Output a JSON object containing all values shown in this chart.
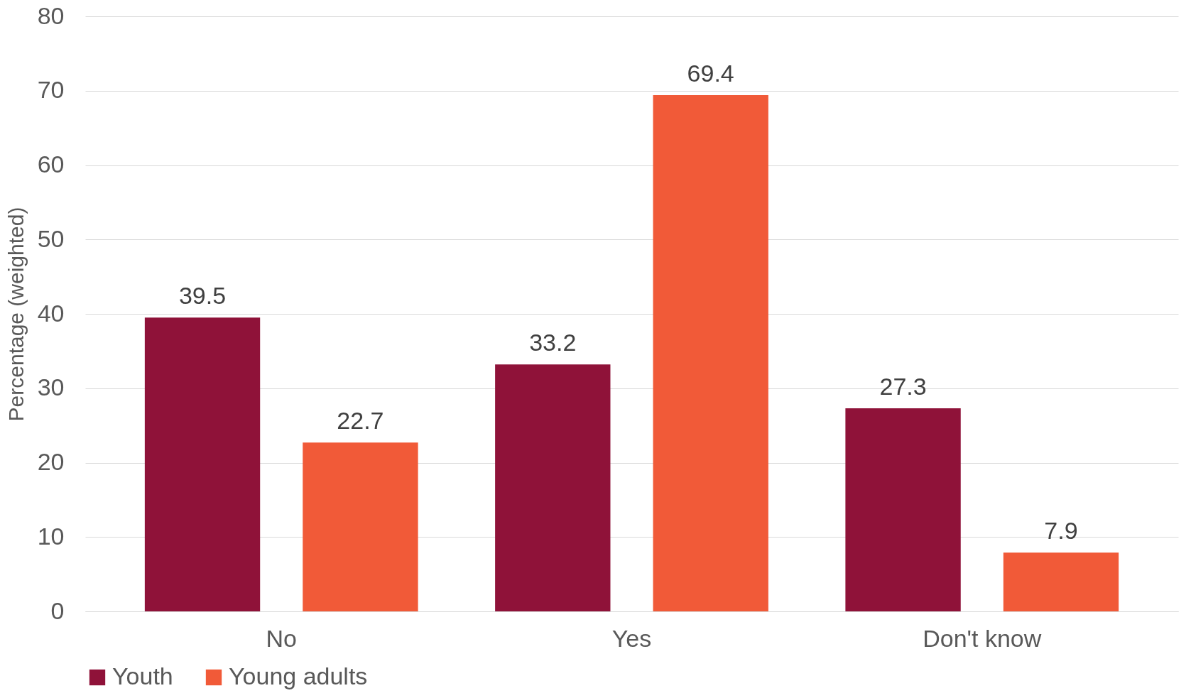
{
  "chart_data": {
    "type": "bar",
    "ylabel": "Percentage (weighted)",
    "categories": [
      "No",
      "Yes",
      "Don't know"
    ],
    "series": [
      {
        "name": "Youth",
        "color": "#8f1239",
        "values": [
          39.5,
          33.2,
          27.3
        ]
      },
      {
        "name": "Young adults",
        "color": "#f15a38",
        "values": [
          22.7,
          69.4,
          7.9
        ]
      }
    ],
    "ylim": [
      0,
      80
    ],
    "yticks": [
      0,
      10,
      20,
      30,
      40,
      50,
      60,
      70,
      80
    ],
    "grid": "y",
    "legend": "bottom",
    "data_labels": true
  }
}
